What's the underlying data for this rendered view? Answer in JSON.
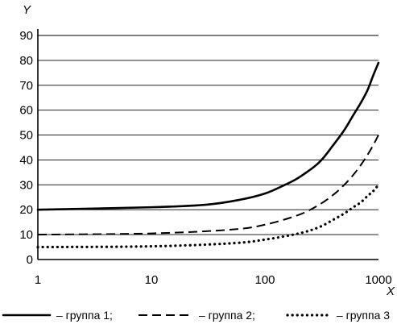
{
  "chart_data": {
    "type": "line",
    "xscale": "log",
    "xlabel": "X",
    "ylabel": "Y",
    "xlim": [
      1,
      1000
    ],
    "ylim": [
      0,
      90
    ],
    "grid": "horizontal",
    "xticks": [
      1,
      10,
      100,
      1000
    ],
    "yticks": [
      0,
      10,
      20,
      30,
      40,
      50,
      60,
      70,
      80,
      90
    ],
    "legend_position": "bottom",
    "series": [
      {
        "name": "– группа 1;",
        "style": "solid",
        "points": [
          [
            1,
            20
          ],
          [
            10,
            21
          ],
          [
            30,
            22
          ],
          [
            60,
            24
          ],
          [
            100,
            26.5
          ],
          [
            150,
            30
          ],
          [
            200,
            33
          ],
          [
            300,
            39
          ],
          [
            400,
            46
          ],
          [
            500,
            52
          ],
          [
            600,
            58
          ],
          [
            700,
            63
          ],
          [
            800,
            68
          ],
          [
            900,
            74
          ],
          [
            1000,
            79
          ]
        ]
      },
      {
        "name": "– группа 2;",
        "style": "dashed",
        "points": [
          [
            1,
            10
          ],
          [
            10,
            10.5
          ],
          [
            50,
            12
          ],
          [
            100,
            14
          ],
          [
            200,
            18
          ],
          [
            300,
            22
          ],
          [
            400,
            26
          ],
          [
            500,
            30
          ],
          [
            600,
            34
          ],
          [
            700,
            38
          ],
          [
            800,
            42
          ],
          [
            900,
            46
          ],
          [
            1000,
            50
          ]
        ]
      },
      {
        "name": "– группа 3",
        "style": "dotted",
        "points": [
          [
            1,
            5
          ],
          [
            10,
            5.3
          ],
          [
            50,
            6.5
          ],
          [
            100,
            8
          ],
          [
            200,
            10.5
          ],
          [
            300,
            13
          ],
          [
            400,
            16
          ],
          [
            500,
            18.5
          ],
          [
            600,
            21
          ],
          [
            700,
            23
          ],
          [
            800,
            25.5
          ],
          [
            900,
            27.5
          ],
          [
            1000,
            30
          ]
        ]
      }
    ]
  }
}
